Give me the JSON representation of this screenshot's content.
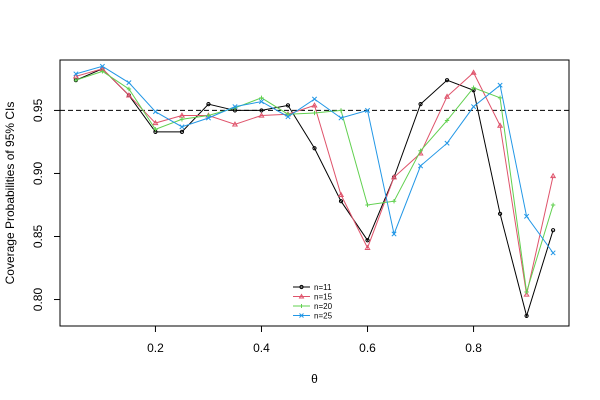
{
  "chart_data": {
    "type": "line",
    "xlabel": "θ",
    "ylabel": "Coverage Probabilities of 95% CIs",
    "xlim": [
      0.02,
      0.98
    ],
    "ylim": [
      0.779,
      0.99
    ],
    "xticks": [
      0.2,
      0.4,
      0.6,
      0.8
    ],
    "xtick_labels": [
      "0.2",
      "0.4",
      "0.6",
      "0.8"
    ],
    "yticks": [
      0.8,
      0.85,
      0.9,
      0.95
    ],
    "ytick_labels": [
      "0.80",
      "0.85",
      "0.90",
      "0.95"
    ],
    "reference_line": 0.95,
    "reference_style": "dashed",
    "grid": false,
    "legend_position": "bottom-center",
    "x": [
      0.05,
      0.1,
      0.15,
      0.2,
      0.25,
      0.3,
      0.35,
      0.4,
      0.45,
      0.5,
      0.55,
      0.6,
      0.65,
      0.7,
      0.75,
      0.8,
      0.85,
      0.9,
      0.95
    ],
    "series": [
      {
        "name": "n=11",
        "color": "#000000",
        "marker": "circle",
        "values": [
          0.974,
          0.983,
          0.962,
          0.933,
          0.933,
          0.955,
          0.95,
          0.95,
          0.954,
          0.92,
          0.878,
          0.847,
          0.897,
          0.955,
          0.974,
          0.966,
          0.868,
          0.787,
          0.855
        ]
      },
      {
        "name": "n=15",
        "color": "#df536b",
        "marker": "triangle",
        "values": [
          0.977,
          0.983,
          0.962,
          0.94,
          0.946,
          0.946,
          0.939,
          0.946,
          0.947,
          0.954,
          0.883,
          0.841,
          0.897,
          0.916,
          0.961,
          0.98,
          0.938,
          0.804,
          0.898
        ]
      },
      {
        "name": "n=20",
        "color": "#61d04f",
        "marker": "plus",
        "values": [
          0.974,
          0.981,
          0.967,
          0.935,
          0.943,
          0.946,
          0.952,
          0.96,
          0.947,
          0.948,
          0.95,
          0.875,
          0.878,
          0.918,
          0.942,
          0.968,
          0.96,
          0.806,
          0.875
        ]
      },
      {
        "name": "n=25",
        "color": "#2297e6",
        "marker": "cross",
        "values": [
          0.979,
          0.985,
          0.972,
          0.949,
          0.937,
          0.944,
          0.953,
          0.957,
          0.945,
          0.959,
          0.944,
          0.95,
          0.852,
          0.906,
          0.924,
          0.953,
          0.97,
          0.866,
          0.837
        ]
      }
    ]
  }
}
